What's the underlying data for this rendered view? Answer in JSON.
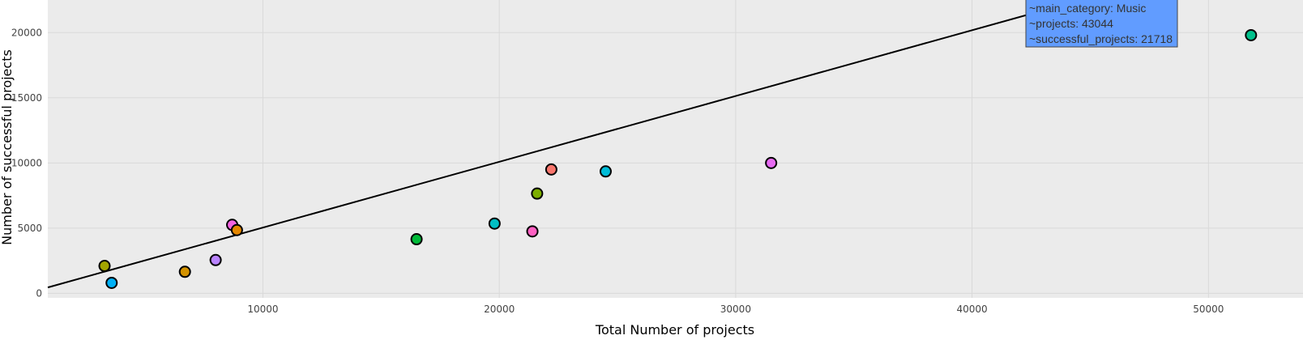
{
  "chart_data": {
    "type": "scatter",
    "xlabel": "Total Number of projects",
    "ylabel": "Number of successful projects",
    "xlim": [
      900,
      54000
    ],
    "ylim": [
      -350,
      22500
    ],
    "xticks": [
      10000,
      20000,
      30000,
      40000,
      50000
    ],
    "yticks": [
      0,
      5000,
      10000,
      15000,
      20000
    ],
    "grid": true,
    "legend": "none",
    "trendline": {
      "from": [
        900,
        450
      ],
      "to": [
        43044,
        21718
      ]
    },
    "points": [
      {
        "x": 3300,
        "y": 2100,
        "color": "#a3a500"
      },
      {
        "x": 3600,
        "y": 800,
        "color": "#00b0f6"
      },
      {
        "x": 6700,
        "y": 1650,
        "color": "#d39200"
      },
      {
        "x": 8000,
        "y": 2550,
        "color": "#b983ff"
      },
      {
        "x": 8700,
        "y": 5250,
        "color": "#f464e2"
      },
      {
        "x": 8900,
        "y": 4850,
        "color": "#e58700"
      },
      {
        "x": 16500,
        "y": 4150,
        "color": "#00ba38"
      },
      {
        "x": 19800,
        "y": 5350,
        "color": "#00bfc4"
      },
      {
        "x": 21400,
        "y": 4750,
        "color": "#ff61c3"
      },
      {
        "x": 21600,
        "y": 7650,
        "color": "#7cae00"
      },
      {
        "x": 22200,
        "y": 9500,
        "color": "#f8766d"
      },
      {
        "x": 24500,
        "y": 9350,
        "color": "#00bcd8"
      },
      {
        "x": 31500,
        "y": 10000,
        "color": "#e76bf3"
      },
      {
        "x": 43044,
        "y": 21718,
        "color": "#619cff"
      },
      {
        "x": 51800,
        "y": 19800,
        "color": "#00c08b"
      }
    ],
    "tooltip": {
      "point_index": 13,
      "lines": [
        "~main_category: Music",
        "~projects: 43044",
        "~successful_projects: 21718"
      ],
      "color": "#619cff"
    }
  },
  "colors": {
    "panel": "#ebebeb",
    "grid": "#d9d9d9",
    "trendline": "#000000"
  }
}
